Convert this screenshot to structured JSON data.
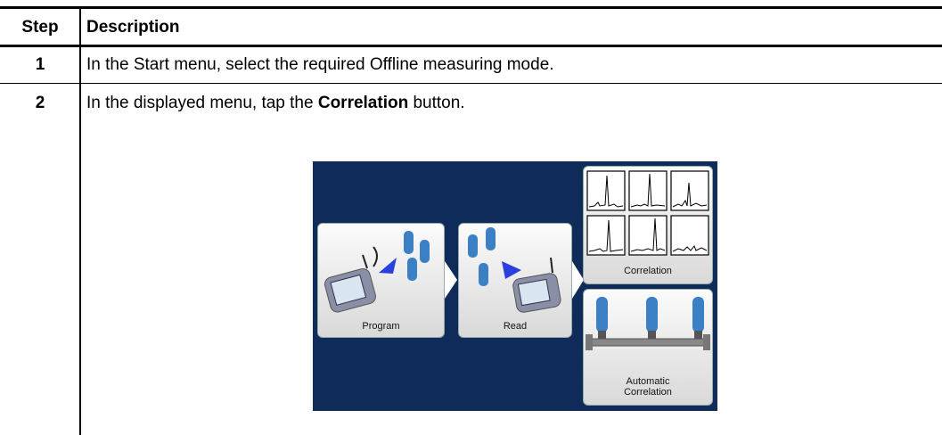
{
  "table": {
    "header": [
      "Step",
      "Description"
    ],
    "rows": [
      [
        "1",
        "In the Start menu, select the required Offline measuring mode."
      ],
      [
        "2",
        {
          "text_before": "In the displayed menu, tap the ",
          "bold": "Correlation",
          "text_after": " button."
        }
      ]
    ]
  },
  "screen": {
    "buttons": [
      "Program",
      "Read",
      "Correlation",
      "Automatic Correlation"
    ]
  }
}
